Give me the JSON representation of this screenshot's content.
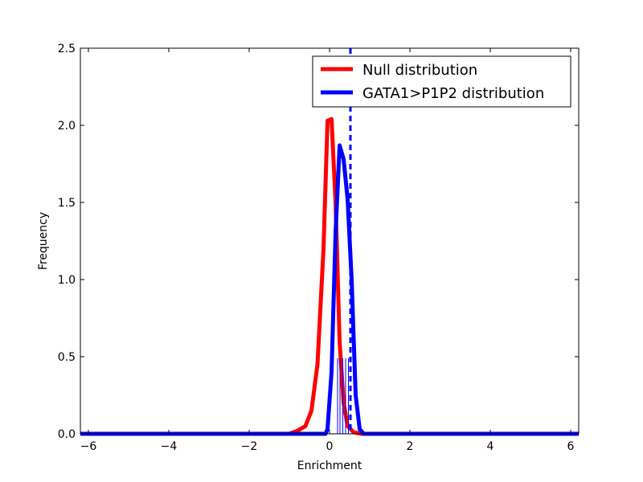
{
  "chart_data": {
    "type": "line",
    "title": "",
    "xlabel": "Enrichment",
    "ylabel": "Frequency",
    "xlim": [
      -6.2,
      6.2
    ],
    "ylim": [
      0.0,
      2.5
    ],
    "xticks": [
      -6,
      -4,
      -2,
      0,
      2,
      4,
      6
    ],
    "xtick_labels": [
      "−6",
      "−4",
      "−2",
      "0",
      "2",
      "4",
      "6"
    ],
    "yticks": [
      0.0,
      0.5,
      1.0,
      1.5,
      2.0,
      2.5
    ],
    "ytick_labels": [
      "0.0",
      "0.5",
      "1.0",
      "1.5",
      "2.0",
      "2.5"
    ],
    "grid": false,
    "legend_position": "top-right",
    "series": [
      {
        "name": "Null distribution",
        "color": "#ff0000",
        "x": [
          -6.2,
          -1.0,
          -0.8,
          -0.6,
          -0.45,
          -0.3,
          -0.15,
          -0.05,
          0.05,
          0.15,
          0.25,
          0.35,
          0.45,
          0.6,
          0.8,
          1.0,
          6.2
        ],
        "y": [
          0.0,
          0.0,
          0.02,
          0.05,
          0.15,
          0.45,
          1.2,
          2.03,
          2.04,
          1.5,
          0.6,
          0.2,
          0.05,
          0.01,
          0.0,
          0.0,
          0.0
        ]
      },
      {
        "name": "GATA1>P1P2 distribution",
        "color": "#0000ff",
        "x": [
          -6.2,
          -0.1,
          -0.05,
          0.05,
          0.15,
          0.25,
          0.35,
          0.45,
          0.55,
          0.65,
          0.75,
          0.85,
          0.95,
          1.05,
          6.2
        ],
        "y": [
          0.0,
          0.0,
          0.03,
          0.4,
          1.3,
          1.87,
          1.78,
          1.52,
          1.0,
          0.25,
          0.03,
          0.0,
          0.0,
          0.0,
          0.0
        ]
      }
    ],
    "vline": {
      "x": 0.52,
      "color": "#0000ff",
      "style": "dashed"
    },
    "rug": {
      "color": "#0000ff",
      "height": 0.49,
      "x": [
        0.2,
        0.26,
        0.33,
        0.4,
        0.47
      ]
    }
  }
}
